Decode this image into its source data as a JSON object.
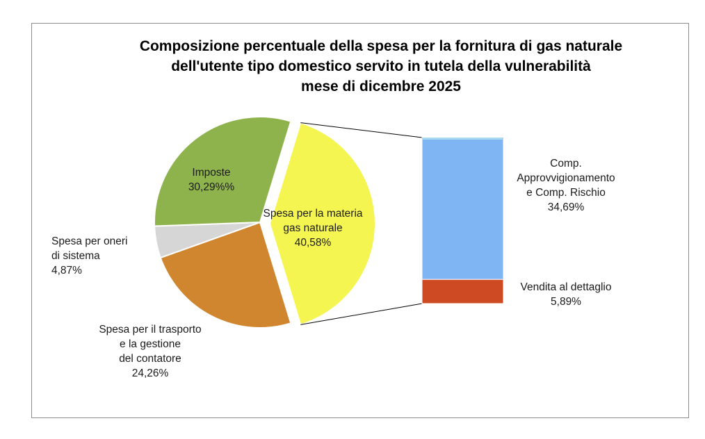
{
  "chart_data": {
    "type": "pie",
    "title_lines": [
      "Composizione percentuale della spesa per la fornitura di gas naturale",
      "dell'utente tipo domestico servito in tutela della vulnerabilità",
      "mese di dicembre 2025"
    ],
    "pie": {
      "slices": [
        {
          "label_lines": [
            "Spesa per la materia",
            "gas naturale",
            "40,58%"
          ],
          "value": 40.58,
          "color": "#f5f552"
        },
        {
          "label_lines": [
            "Spesa per il trasporto",
            "e la gestione",
            "del contatore",
            "24,26%"
          ],
          "value": 24.26,
          "color": "#d0852f"
        },
        {
          "label_lines": [
            "Spesa per oneri",
            "di sistema",
            "4,87%"
          ],
          "value": 4.87,
          "color": "#d6d6d6"
        },
        {
          "label_lines": [
            "Imposte",
            "30,29%%"
          ],
          "value": 30.29,
          "color": "#8eb34c"
        }
      ]
    },
    "bar_of_pie": {
      "segments": [
        {
          "label_lines": [
            "Comp.",
            "Approvvigionamento",
            "e  Comp. Rischio",
            "34,69%"
          ],
          "value": 34.69,
          "color": "#7fb5f3"
        },
        {
          "label_lines": [
            "Vendita al dettaglio",
            "5,89%"
          ],
          "value": 5.89,
          "color": "#cd4a22"
        }
      ]
    }
  }
}
